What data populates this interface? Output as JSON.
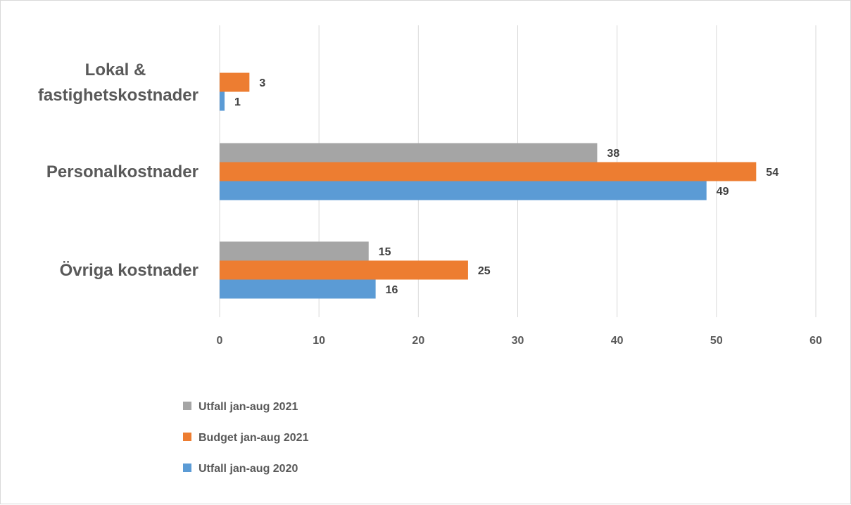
{
  "chart_data": {
    "type": "bar",
    "orientation": "horizontal",
    "categories": [
      "Lokal &\nfastighetskostnader",
      "Personalkostnader",
      "Övriga kostnader"
    ],
    "series": [
      {
        "name": "Utfall jan-aug 2021",
        "color": "#a5a5a5",
        "values": [
          null,
          38,
          15
        ],
        "labels": [
          "",
          "38",
          "15"
        ],
        "exact_values": [
          null,
          38,
          14.6
        ]
      },
      {
        "name": "Budget jan-aug 2021",
        "color": "#ed7d31",
        "values": [
          3,
          54,
          25
        ],
        "labels": [
          "3",
          "54",
          "25"
        ],
        "exact_values": [
          3,
          54,
          25
        ]
      },
      {
        "name": "Utfall jan-aug 2020",
        "color": "#5b9bd5",
        "values": [
          0.5,
          49,
          15.7
        ],
        "labels": [
          "1",
          "49",
          "16"
        ],
        "exact_values": [
          0.5,
          49,
          15.7
        ]
      }
    ],
    "xlim": [
      0,
      60
    ],
    "xticks": [
      "0",
      "10",
      "20",
      "30",
      "40",
      "50",
      "60"
    ],
    "grid": true,
    "legend_position": "bottom-left",
    "title": "",
    "xlabel": "",
    "ylabel": ""
  }
}
